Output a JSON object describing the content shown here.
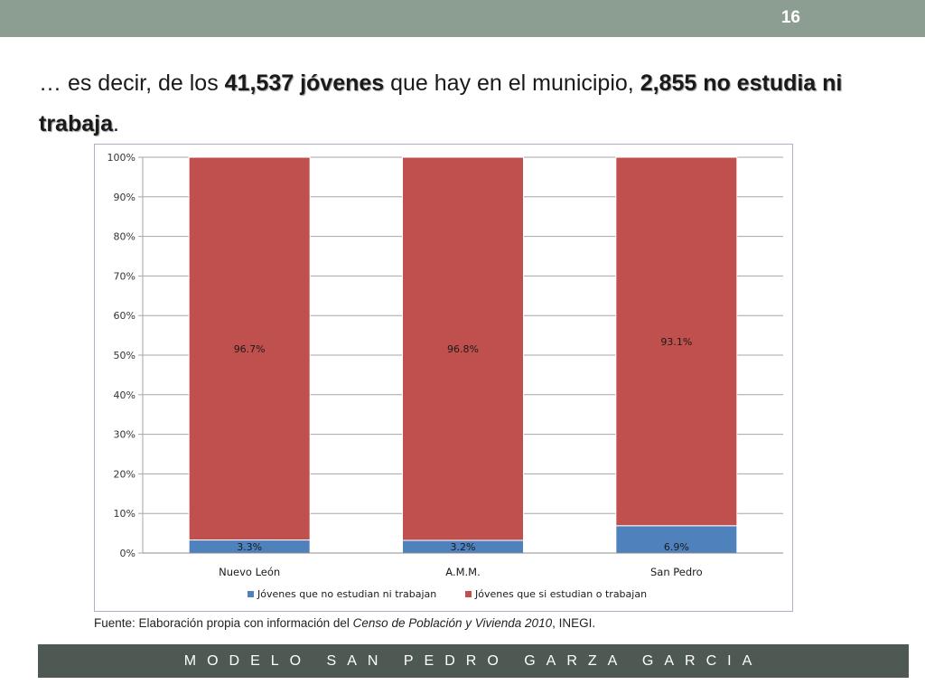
{
  "slide_number": "16",
  "headline": {
    "part1": "… es decir, de los ",
    "bold1": "41,537 jóvenes",
    "part2": " que hay en el municipio, ",
    "bold2": "2,855 no estudia ni trabaja",
    "part3": "."
  },
  "source": {
    "prefix": "Fuente: Elaboración propia con información del ",
    "italic": "Censo de Población y Vivienda  2010",
    "suffix": ", INEGI."
  },
  "footer": "MODELO SAN PEDRO GARZA GARCIA",
  "colors": {
    "series_blue": "#4f81bd",
    "series_red": "#c0504d",
    "top_bar": "#8c9e92",
    "footer_bar": "#4e5953"
  },
  "chart_data": {
    "type": "bar",
    "stacked": true,
    "categories": [
      "Nuevo León",
      "A.M.M.",
      "San Pedro"
    ],
    "series": [
      {
        "name": "Jóvenes que no estudian ni trabajan",
        "values": [
          3.3,
          3.2,
          6.9
        ],
        "labels": [
          "3.3%",
          "3.2%",
          "6.9%"
        ],
        "color": "#4f81bd"
      },
      {
        "name": "Jóvenes que si estudian o trabajan",
        "values": [
          96.7,
          96.8,
          93.1
        ],
        "labels": [
          "96.7%",
          "96.8%",
          "93.1%"
        ],
        "color": "#c0504d"
      }
    ],
    "ylim": [
      0,
      100
    ],
    "yticks": [
      "0%",
      "10%",
      "20%",
      "30%",
      "40%",
      "50%",
      "60%",
      "70%",
      "80%",
      "90%",
      "100%"
    ],
    "title": "",
    "xlabel": "",
    "ylabel": "",
    "grid": true,
    "legend_position": "bottom"
  }
}
